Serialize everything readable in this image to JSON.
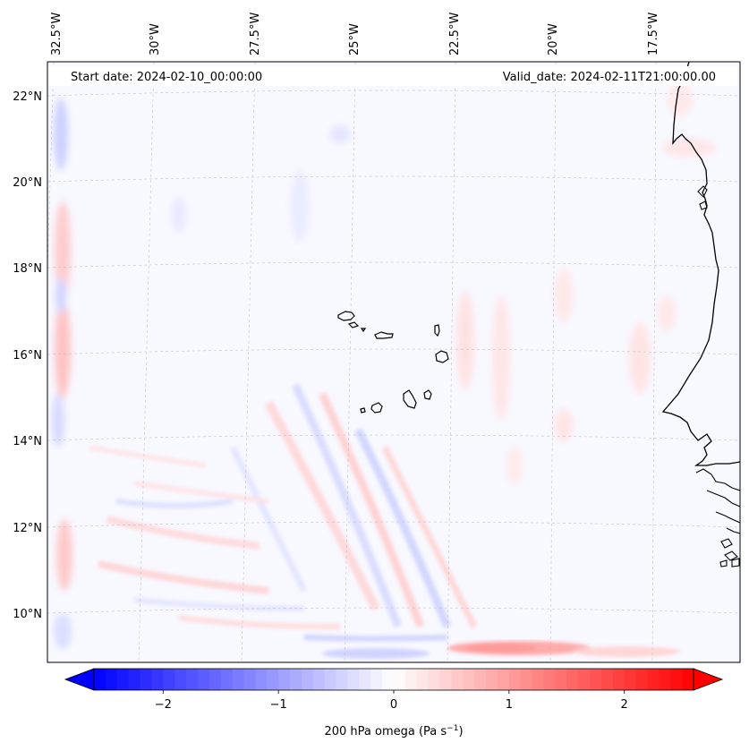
{
  "header": {
    "start_date": "Start date: 2024-02-10_00:00:00",
    "valid_date": "Valid_date: 2024-02-11T21:00:00.00"
  },
  "longitude_labels": [
    "32.5°W",
    "30°W",
    "27.5°W",
    "25°W",
    "22.5°W",
    "20°W",
    "17.5°W"
  ],
  "latitude_labels": [
    "22°N",
    "20°N",
    "18°N",
    "16°N",
    "14°N",
    "12°N",
    "10°N"
  ],
  "colorbar": {
    "label": "200 hPa omega (Pa s",
    "label_exponent": "−1",
    "label_close": ")",
    "range": [
      -2.6,
      2.6
    ],
    "ticks": [
      {
        "value": -2,
        "text": "−2"
      },
      {
        "value": -1,
        "text": "−1"
      },
      {
        "value": 0,
        "text": "0"
      },
      {
        "value": 1,
        "text": "1"
      },
      {
        "value": 2,
        "text": "2"
      }
    ],
    "colors": {
      "min": "#0000ff",
      "mid": "#ffffff",
      "max": "#ff0000"
    }
  },
  "map": {
    "background_tint": "#f7f7ff",
    "coastline_color": "#000000",
    "gridline_color": "#b0b0b0"
  }
}
